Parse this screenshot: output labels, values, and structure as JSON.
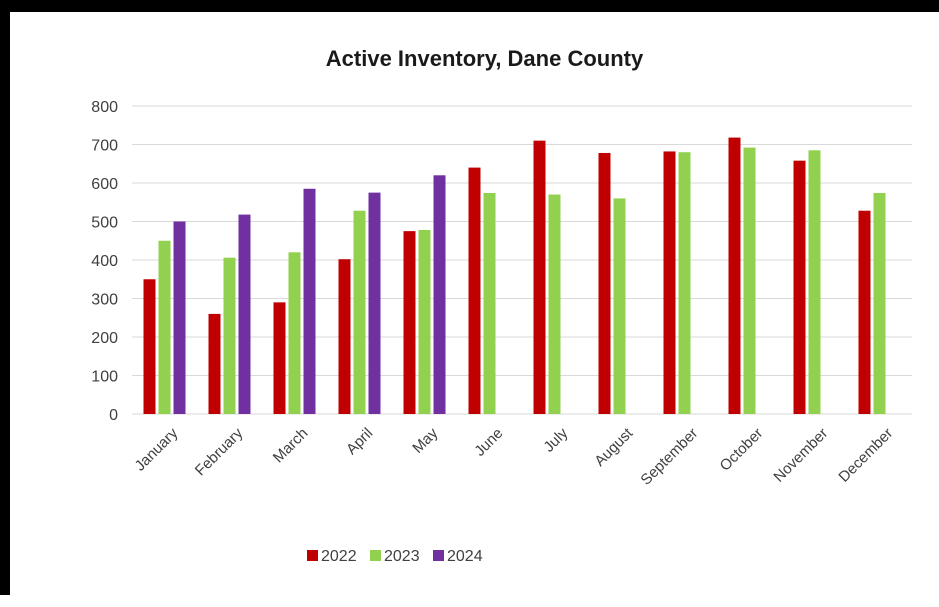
{
  "chart_data": {
    "type": "bar",
    "title": "Active Inventory, Dane County",
    "xlabel": "",
    "ylabel": "",
    "categories": [
      "January",
      "February",
      "March",
      "April",
      "May",
      "June",
      "July",
      "August",
      "September",
      "October",
      "November",
      "December"
    ],
    "ylim": [
      0,
      800
    ],
    "yticks": [
      0,
      100,
      200,
      300,
      400,
      500,
      600,
      700,
      800
    ],
    "grid": true,
    "legend_position": "bottom",
    "series": [
      {
        "name": "2022",
        "color": "#c00000",
        "values": [
          350,
          260,
          290,
          402,
          475,
          640,
          710,
          678,
          682,
          718,
          658,
          528
        ]
      },
      {
        "name": "2023",
        "color": "#92d050",
        "values": [
          450,
          406,
          420,
          528,
          478,
          574,
          570,
          560,
          680,
          692,
          685,
          574
        ]
      },
      {
        "name": "2024",
        "color": "#7030a0",
        "values": [
          500,
          518,
          585,
          575,
          620,
          null,
          null,
          null,
          null,
          null,
          null,
          null
        ]
      }
    ]
  }
}
